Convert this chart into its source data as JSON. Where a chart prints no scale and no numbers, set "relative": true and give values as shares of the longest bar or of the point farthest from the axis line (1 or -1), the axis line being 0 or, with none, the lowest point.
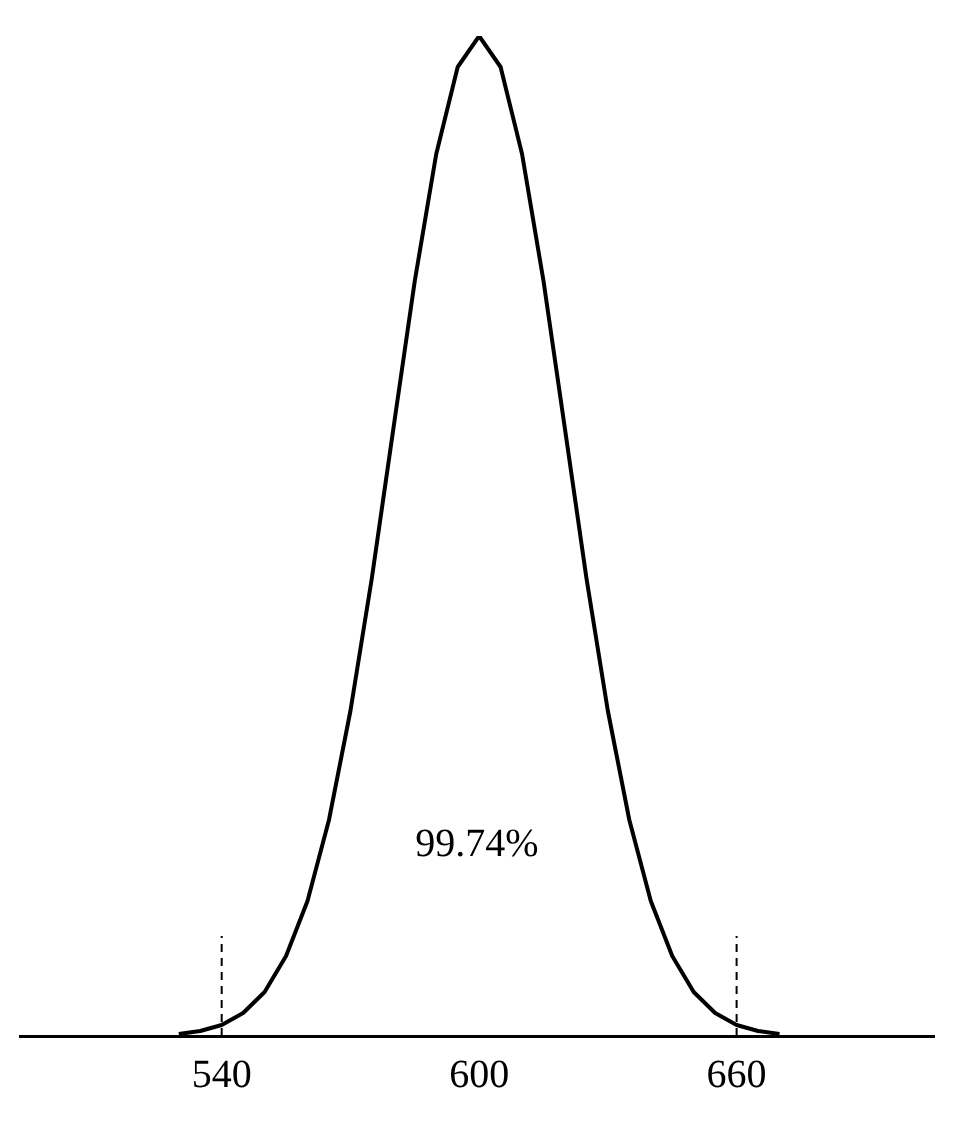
{
  "chart_data": {
    "type": "line",
    "relative": true,
    "x": [
      530,
      535,
      540,
      545,
      550,
      555,
      560,
      565,
      570,
      575,
      580,
      585,
      590,
      595,
      600,
      605,
      610,
      615,
      620,
      625,
      630,
      635,
      640,
      645,
      650,
      655,
      660,
      665,
      670
    ],
    "series": [
      {
        "color": "#000000",
        "values": [
          0.002,
          0.005,
          0.011,
          0.023,
          0.044,
          0.08,
          0.135,
          0.216,
          0.325,
          0.458,
          0.607,
          0.755,
          0.882,
          0.969,
          1,
          0.969,
          0.882,
          0.755,
          0.607,
          0.458,
          0.325,
          0.216,
          0.135,
          0.08,
          0.044,
          0.023,
          0.011,
          0.005,
          0.002
        ]
      }
    ],
    "xlim": [
      493,
      706
    ],
    "xticks": [
      540,
      600,
      660
    ],
    "ref_lines": [
      {
        "axis": "x",
        "value": 540,
        "line_style": "dashed",
        "color": "#000000"
      },
      {
        "axis": "x",
        "value": 660,
        "line_style": "dashed",
        "color": "#000000"
      }
    ],
    "annotations": [
      "99.74%"
    ],
    "grid": false,
    "legend": false,
    "marker": "none",
    "line_style": "solid"
  }
}
